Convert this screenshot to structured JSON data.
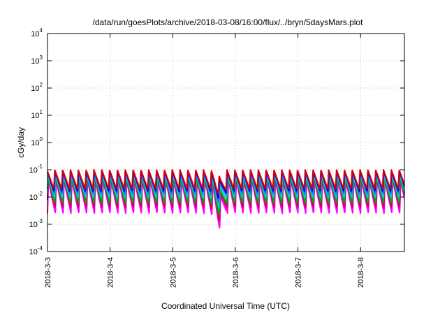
{
  "chart_data": {
    "type": "line",
    "title": "/data/run/goesPlots/archive/2018-03-08/16:00/flux/../bryn/5daysMars.plot",
    "xlabel": "Coordinated Universal Time (UTC)",
    "ylabel": "cGy/day",
    "yscale": "log",
    "ylim": [
      0.0001,
      10000
    ],
    "xlim": [
      0,
      5.7
    ],
    "grid": true,
    "legend": "none",
    "y_ticks": [
      {
        "value": 0.0001,
        "base": "10",
        "exp": "-4"
      },
      {
        "value": 0.001,
        "base": "10",
        "exp": "-3"
      },
      {
        "value": 0.01,
        "base": "10",
        "exp": "-2"
      },
      {
        "value": 0.1,
        "base": "10",
        "exp": "-1"
      },
      {
        "value": 1,
        "base": "10",
        "exp": "0"
      },
      {
        "value": 10,
        "base": "10",
        "exp": "1"
      },
      {
        "value": 100,
        "base": "10",
        "exp": "2"
      },
      {
        "value": 1000,
        "base": "10",
        "exp": "3"
      },
      {
        "value": 10000,
        "base": "10",
        "exp": "4"
      }
    ],
    "x_ticks": [
      {
        "value": 0,
        "label": "2018-3-3"
      },
      {
        "value": 1,
        "label": "2018-3-4"
      },
      {
        "value": 2,
        "label": "2018-3-5"
      },
      {
        "value": 3,
        "label": "2018-3-6"
      },
      {
        "value": 4,
        "label": "2018-3-7"
      },
      {
        "value": 5,
        "label": "2018-3-8"
      }
    ],
    "series": [
      {
        "color": "#ff00ff",
        "peak": 0.04,
        "trough": 0.0025
      },
      {
        "color": "#cc0066",
        "peak": 0.05,
        "trough": 0.004
      },
      {
        "color": "#00aa00",
        "peak": 0.055,
        "trough": 0.006
      },
      {
        "color": "#00cccc",
        "peak": 0.065,
        "trough": 0.009
      },
      {
        "color": "#3366ff",
        "peak": 0.08,
        "trough": 0.013
      },
      {
        "color": "#0000ff",
        "peak": 0.09,
        "trough": 0.016
      },
      {
        "color": "#dd0000",
        "peak": 0.1,
        "trough": 0.02
      }
    ],
    "oscillation": {
      "cycles_per_day": 8
    }
  }
}
